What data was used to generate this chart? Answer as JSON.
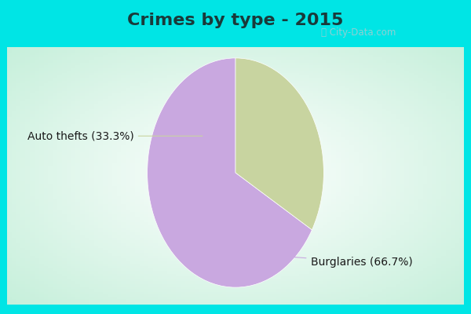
{
  "title": "Crimes by type - 2015",
  "slices": [
    66.7,
    33.3
  ],
  "labels": [
    "Burglaries (66.7%)",
    "Auto thefts (33.3%)"
  ],
  "colors": [
    "#c9a8e0",
    "#c8d4a0"
  ],
  "title_color": "#1a3a3a",
  "label_color": "#1a1a1a",
  "border_color": "#00e5e5",
  "title_fontsize": 16,
  "label_fontsize": 10,
  "startangle": 90,
  "watermark": "ⓘ City-Data.com",
  "watermark_color": "#a8ccd0"
}
